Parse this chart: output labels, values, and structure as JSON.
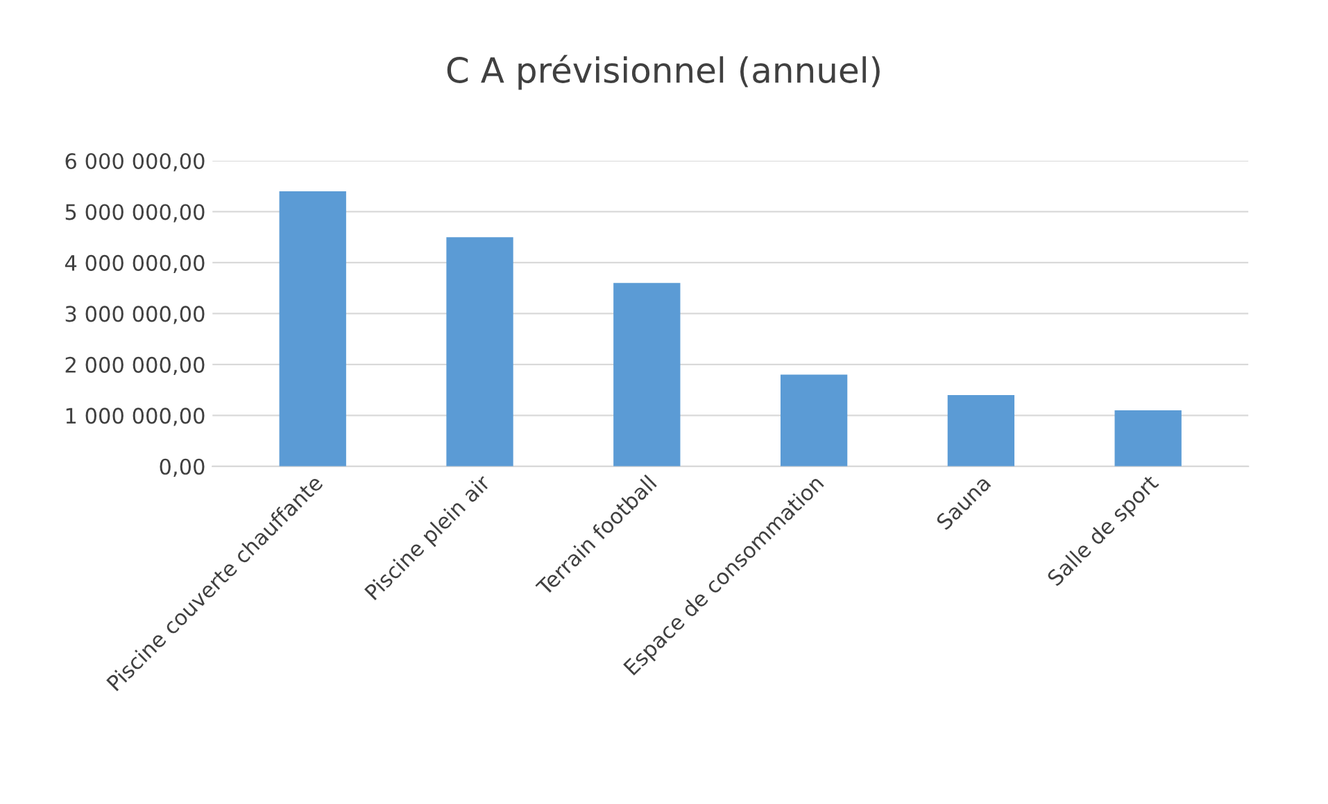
{
  "chart_data": {
    "type": "bar",
    "title": "C A prévisionnel (annuel)",
    "categories": [
      "Piscine couverte chauffante",
      "Piscine plein air",
      "Terrain football",
      "Espace de consommation",
      "Sauna",
      "Salle de sport"
    ],
    "values": [
      5400000,
      4500000,
      3600000,
      1800000,
      1400000,
      1100000
    ],
    "color": "#5b9bd5",
    "ylim": [
      0,
      6000000
    ],
    "yticks": [
      {
        "value": 0,
        "label": "0,00"
      },
      {
        "value": 1000000,
        "label": "1 000 000,00"
      },
      {
        "value": 2000000,
        "label": "2 000 000,00"
      },
      {
        "value": 3000000,
        "label": "3 000 000,00"
      },
      {
        "value": 4000000,
        "label": "4 000 000,00"
      },
      {
        "value": 5000000,
        "label": "5 000 000,00"
      },
      {
        "value": 6000000,
        "label": "6 000 000,00"
      }
    ],
    "grid": "y"
  }
}
